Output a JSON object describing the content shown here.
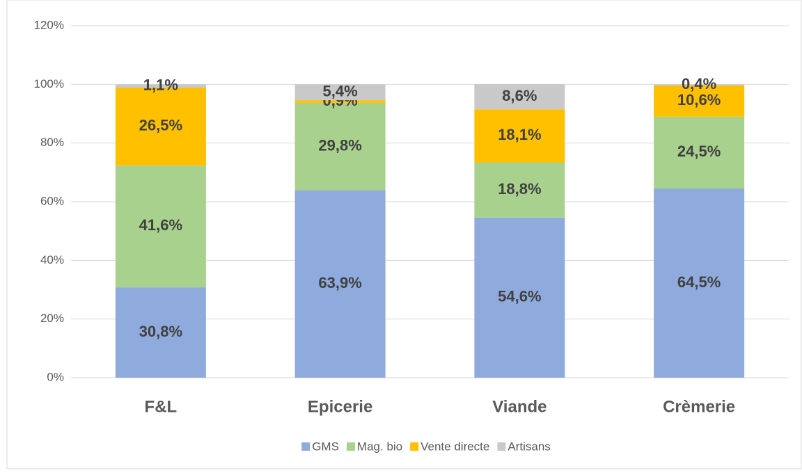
{
  "chart_data": {
    "type": "stacked_bar",
    "categories": [
      "F&L",
      "Epicerie",
      "Viande",
      "Crèmerie"
    ],
    "series": [
      {
        "name": "GMS",
        "color": "#8faadc",
        "values": [
          30.8,
          63.9,
          54.6,
          64.5
        ],
        "value_labels": [
          "30,8%",
          "63,9%",
          "54,6%",
          "64,5%"
        ]
      },
      {
        "name": "Mag. bio",
        "color": "#a9d18e",
        "values": [
          41.6,
          29.8,
          18.8,
          24.5
        ],
        "value_labels": [
          "41,6%",
          "29,8%",
          "18,8%",
          "24,5%"
        ]
      },
      {
        "name": "Vente directe",
        "color": "#ffc000",
        "values": [
          26.5,
          0.9,
          18.1,
          10.6
        ],
        "value_labels": [
          "26,5%",
          "0,9%",
          "18,1%",
          "10,6%"
        ]
      },
      {
        "name": "Artisans",
        "color": "#c9c9c9",
        "values": [
          1.1,
          5.4,
          8.6,
          0.4
        ],
        "value_labels": [
          "1,1%",
          "5,4%",
          "8,6%",
          "0,4%"
        ]
      }
    ],
    "ylim": [
      0,
      120
    ],
    "yticks": [
      {
        "value": 0,
        "label": "0%"
      },
      {
        "value": 20,
        "label": "20%"
      },
      {
        "value": 40,
        "label": "40%"
      },
      {
        "value": 60,
        "label": "60%"
      },
      {
        "value": 80,
        "label": "80%"
      },
      {
        "value": 100,
        "label": "100%"
      },
      {
        "value": 120,
        "label": "120%"
      }
    ],
    "grid": true,
    "legend": "bottom"
  }
}
